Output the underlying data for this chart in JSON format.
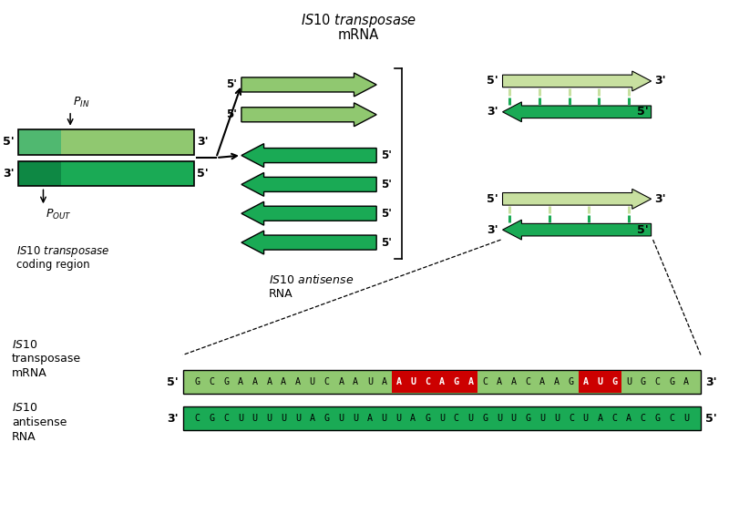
{
  "bg_color": "#ffffff",
  "light_green": "#90c870",
  "dark_green": "#1aaa55",
  "very_light_green": "#c8e0a0",
  "mid_green": "#50b870",
  "red": "#cc0000",
  "white": "#ffffff",
  "black": "#000000",
  "mrna_seq_normal1": "GCGAAAAAUCAAUA",
  "mrna_seq_red1": "AUCAGA",
  "mrna_seq_normal2": "CAACAAG",
  "mrna_seq_red2": "AUG",
  "mrna_seq_normal3": "UGCGA",
  "antisense_seq": "CGCUUUUUAGUUAUUAGUCUGUUGUUCUACACGCU"
}
